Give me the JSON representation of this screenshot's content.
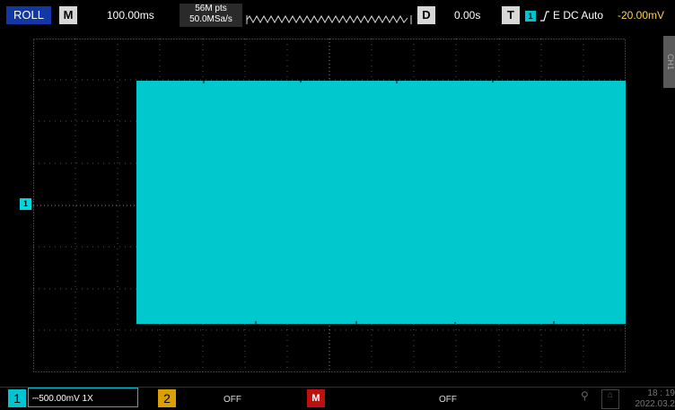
{
  "topbar": {
    "mode": "ROLL",
    "m_label": "M",
    "timebase": "100.00ms",
    "points": "56M pts",
    "sample_rate": "50.0MSa/s",
    "d_label": "D",
    "delay": "0.00s",
    "t_label": "T",
    "trigger_channel": "1",
    "trigger_settings": "E DC Auto",
    "trigger_level": "-20.00mV"
  },
  "side_tab": "CH1",
  "channel_marker": "1",
  "bottombar": {
    "ch1_num": "1",
    "ch1_settings": "500.00mV 1X",
    "ch2_num": "2",
    "ch2_state": "OFF",
    "math_label": "M",
    "math_state": "OFF",
    "time": "18 : 19",
    "date": "2022.03.2"
  },
  "colors": {
    "ch1": "#00c4cf",
    "ch2": "#d9a000",
    "math": "#bf1010",
    "blue_button": "#1238a8"
  }
}
